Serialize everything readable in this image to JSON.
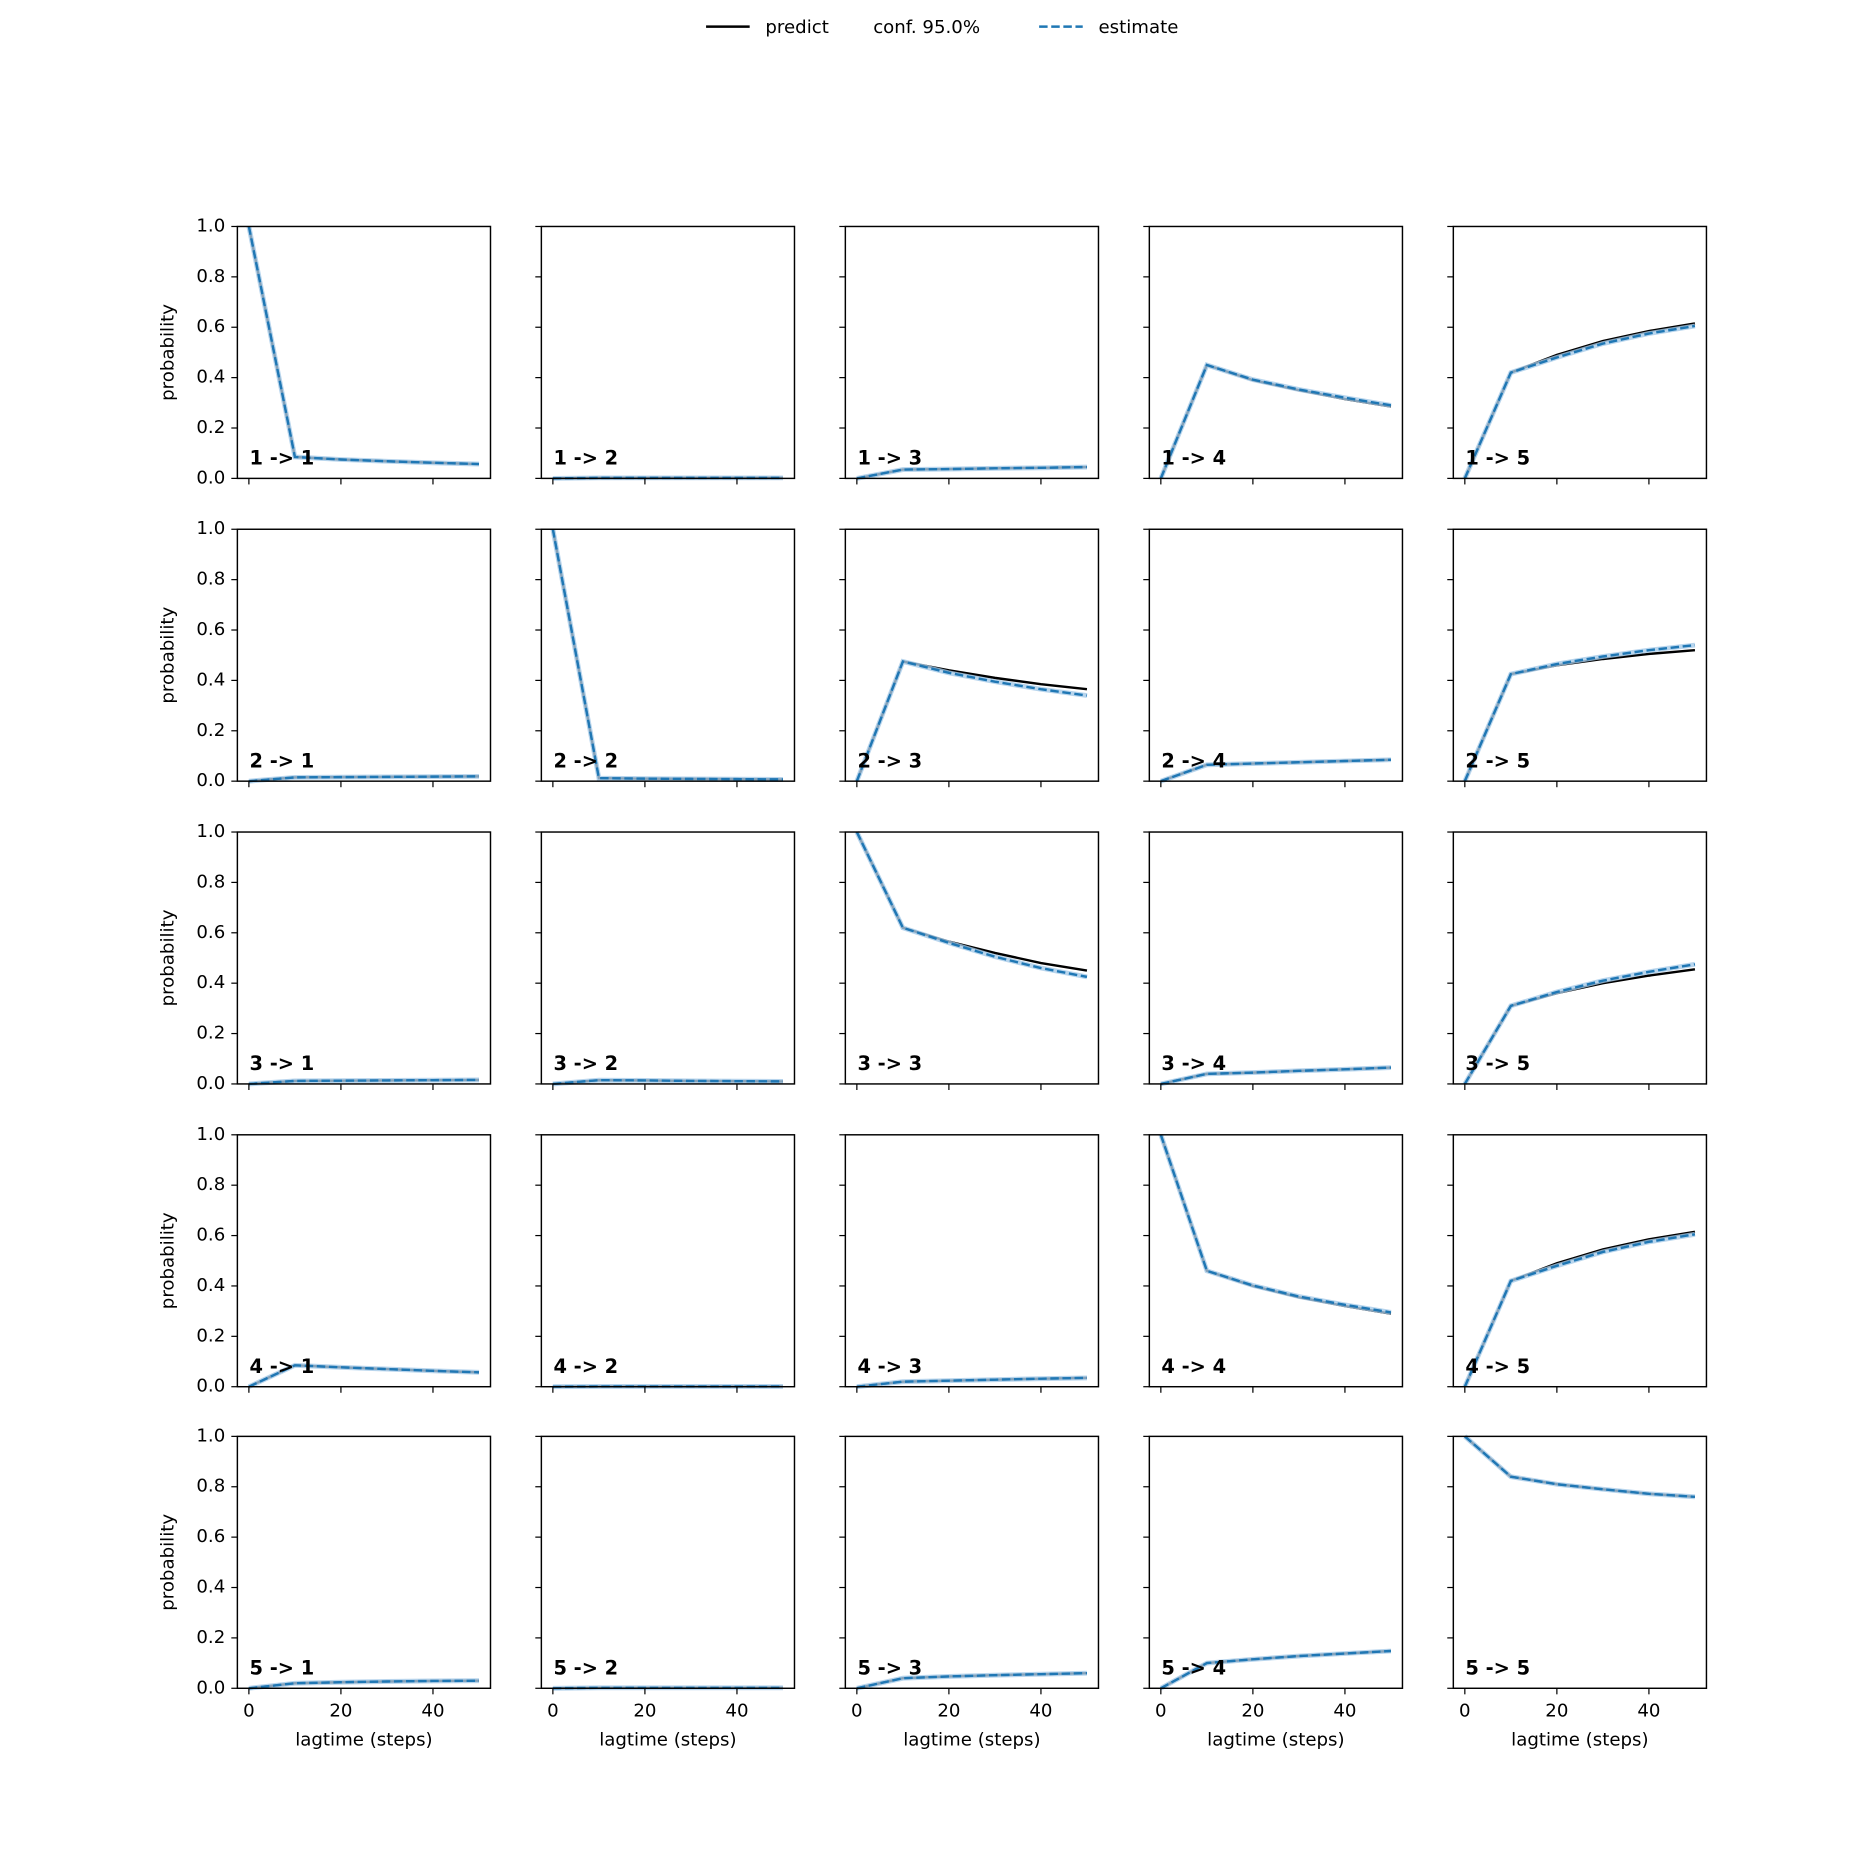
{
  "chart_data": {
    "type": "line",
    "legend": [
      {
        "label": "predict",
        "color": "#000000",
        "dash": false
      },
      {
        "label": "conf. 95.0%"
      },
      {
        "label": "estimate",
        "color": "#1f77b4",
        "dash": true
      }
    ],
    "xlabel": "lagtime (steps)",
    "ylabel": "probability",
    "x": [
      0,
      10,
      20,
      30,
      40,
      50
    ],
    "xlim": [
      -2.5,
      52.5
    ],
    "xticks": [
      0,
      20,
      40
    ],
    "ylim": [
      0,
      1
    ],
    "yticks": [
      {
        "value": 0,
        "label": "0.0"
      },
      0.2,
      0.4,
      0.6,
      0.8,
      {
        "value": 1,
        "label": "1.0"
      }
    ],
    "panels": [
      {
        "title": "1 -> 1",
        "predict": [
          1,
          0.085,
          0.075,
          0.068,
          0.062,
          0.057
        ],
        "estimate": [
          1,
          0.085,
          0.075,
          0.068,
          0.062,
          0.057
        ]
      },
      {
        "title": "1 -> 2",
        "predict": [
          0,
          0.002,
          0.002,
          0.002,
          0.002,
          0.002
        ],
        "estimate": [
          0,
          0.002,
          0.002,
          0.002,
          0.002,
          0.002
        ]
      },
      {
        "title": "1 -> 3",
        "predict": [
          0,
          0.035,
          0.037,
          0.04,
          0.042,
          0.045
        ],
        "estimate": [
          0,
          0.035,
          0.037,
          0.04,
          0.042,
          0.045
        ]
      },
      {
        "title": "1 -> 4",
        "predict": [
          0,
          0.45,
          0.39,
          0.35,
          0.315,
          0.285
        ],
        "estimate": [
          0,
          0.45,
          0.392,
          0.353,
          0.32,
          0.29
        ]
      },
      {
        "title": "1 -> 5",
        "predict": [
          0,
          0.42,
          0.49,
          0.545,
          0.585,
          0.615
        ],
        "estimate": [
          0,
          0.42,
          0.48,
          0.535,
          0.575,
          0.605
        ]
      },
      {
        "title": "2 -> 1",
        "predict": [
          0,
          0.015,
          0.016,
          0.017,
          0.018,
          0.019
        ],
        "estimate": [
          0,
          0.015,
          0.016,
          0.017,
          0.018,
          0.019
        ]
      },
      {
        "title": "2 -> 2",
        "predict": [
          1,
          0.012,
          0.01,
          0.009,
          0.008,
          0.007
        ],
        "estimate": [
          1,
          0.012,
          0.01,
          0.009,
          0.008,
          0.007
        ]
      },
      {
        "title": "2 -> 3",
        "predict": [
          0,
          0.475,
          0.44,
          0.41,
          0.385,
          0.365
        ],
        "estimate": [
          0,
          0.475,
          0.43,
          0.395,
          0.365,
          0.34
        ]
      },
      {
        "title": "2 -> 4",
        "predict": [
          0,
          0.065,
          0.07,
          0.075,
          0.08,
          0.085
        ],
        "estimate": [
          0,
          0.065,
          0.07,
          0.075,
          0.08,
          0.085
        ]
      },
      {
        "title": "2 -> 5",
        "predict": [
          0,
          0.425,
          0.46,
          0.485,
          0.505,
          0.52
        ],
        "estimate": [
          0,
          0.425,
          0.465,
          0.495,
          0.52,
          0.54
        ]
      },
      {
        "title": "3 -> 1",
        "predict": [
          0,
          0.012,
          0.013,
          0.014,
          0.015,
          0.016
        ],
        "estimate": [
          0,
          0.012,
          0.013,
          0.014,
          0.015,
          0.016
        ]
      },
      {
        "title": "3 -> 2",
        "predict": [
          0,
          0.015,
          0.014,
          0.012,
          0.011,
          0.01
        ],
        "estimate": [
          0,
          0.015,
          0.014,
          0.012,
          0.011,
          0.01
        ]
      },
      {
        "title": "3 -> 3",
        "predict": [
          1,
          0.62,
          0.565,
          0.52,
          0.48,
          0.45
        ],
        "estimate": [
          1,
          0.62,
          0.56,
          0.505,
          0.46,
          0.425
        ]
      },
      {
        "title": "3 -> 4",
        "predict": [
          0,
          0.04,
          0.045,
          0.052,
          0.058,
          0.065
        ],
        "estimate": [
          0,
          0.04,
          0.045,
          0.052,
          0.058,
          0.065
        ]
      },
      {
        "title": "3 -> 5",
        "predict": [
          0,
          0.31,
          0.36,
          0.4,
          0.43,
          0.455
        ],
        "estimate": [
          0,
          0.31,
          0.365,
          0.41,
          0.445,
          0.475
        ]
      },
      {
        "title": "4 -> 1",
        "predict": [
          0,
          0.085,
          0.077,
          0.07,
          0.063,
          0.057
        ],
        "estimate": [
          0,
          0.085,
          0.077,
          0.07,
          0.063,
          0.057
        ]
      },
      {
        "title": "4 -> 2",
        "predict": [
          0,
          0.001,
          0.001,
          0.001,
          0.001,
          0.001
        ],
        "estimate": [
          0,
          0.001,
          0.001,
          0.001,
          0.001,
          0.001
        ]
      },
      {
        "title": "4 -> 3",
        "predict": [
          0,
          0.02,
          0.024,
          0.028,
          0.032,
          0.035
        ],
        "estimate": [
          0,
          0.02,
          0.024,
          0.028,
          0.032,
          0.035
        ]
      },
      {
        "title": "4 -> 4",
        "predict": [
          1,
          0.46,
          0.4,
          0.355,
          0.32,
          0.29
        ],
        "estimate": [
          1,
          0.46,
          0.402,
          0.358,
          0.325,
          0.295
        ]
      },
      {
        "title": "4 -> 5",
        "predict": [
          0,
          0.42,
          0.49,
          0.545,
          0.585,
          0.615
        ],
        "estimate": [
          0,
          0.42,
          0.48,
          0.535,
          0.575,
          0.605
        ]
      },
      {
        "title": "5 -> 1",
        "predict": [
          0,
          0.02,
          0.024,
          0.027,
          0.029,
          0.03
        ],
        "estimate": [
          0,
          0.02,
          0.024,
          0.027,
          0.029,
          0.03
        ]
      },
      {
        "title": "5 -> 2",
        "predict": [
          0,
          0.002,
          0.002,
          0.002,
          0.002,
          0.002
        ],
        "estimate": [
          0,
          0.002,
          0.002,
          0.002,
          0.002,
          0.002
        ]
      },
      {
        "title": "5 -> 3",
        "predict": [
          0,
          0.04,
          0.047,
          0.052,
          0.056,
          0.06
        ],
        "estimate": [
          0,
          0.04,
          0.047,
          0.052,
          0.056,
          0.06
        ]
      },
      {
        "title": "5 -> 4",
        "predict": [
          0,
          0.1,
          0.115,
          0.128,
          0.138,
          0.148
        ],
        "estimate": [
          0,
          0.1,
          0.115,
          0.128,
          0.138,
          0.148
        ]
      },
      {
        "title": "5 -> 5",
        "predict": [
          1,
          0.84,
          0.81,
          0.79,
          0.772,
          0.76
        ],
        "estimate": [
          1,
          0.84,
          0.81,
          0.79,
          0.772,
          0.76
        ]
      }
    ]
  }
}
